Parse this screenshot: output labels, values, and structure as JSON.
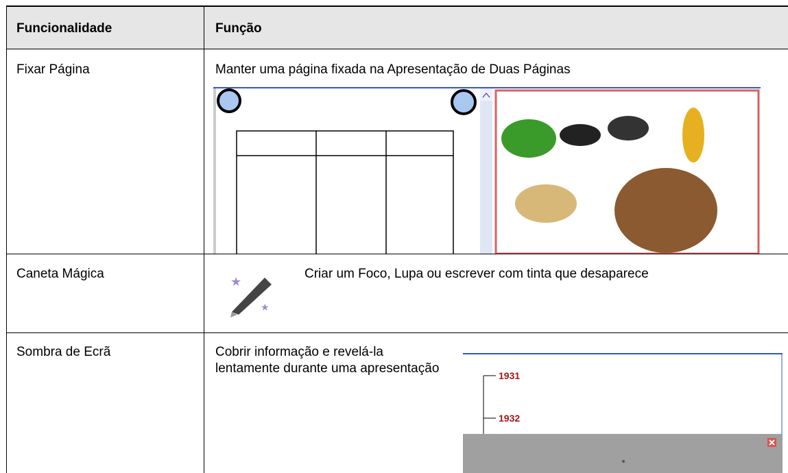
{
  "table": {
    "header": [
      "Funcionalidade",
      "Função"
    ],
    "rows": [
      [
        "Fixar Página",
        "Manter uma página fixada na Apresentação de Duas Páginas"
      ],
      [
        "Caneta Mágica",
        "Criar um Foco, Lupa ou escrever com tinta que desaparece"
      ],
      [
        "Sombra de Ecrã",
        "Cobrir informação e revelá-la lentamente durante uma apresentação"
      ]
    ]
  },
  "screen_shade": {
    "labels": [
      "1931",
      "1932"
    ]
  }
}
